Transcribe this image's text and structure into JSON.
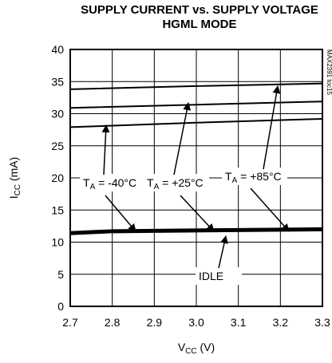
{
  "chart_data": {
    "type": "line",
    "title": "SUPPLY CURRENT vs. SUPPLY VOLTAGE",
    "subtitle": "HGML MODE",
    "xlabel": {
      "main": "V",
      "sub": "CC",
      "unit": " (V)"
    },
    "ylabel": {
      "main": "I",
      "sub": "CC",
      "unit": " (mA)"
    },
    "xlim": [
      2.7,
      3.3
    ],
    "ylim": [
      0,
      40
    ],
    "xticks": [
      "2.7",
      "2.8",
      "2.9",
      "3.0",
      "3.1",
      "3.2",
      "3.3"
    ],
    "yticks": [
      "0",
      "5",
      "10",
      "15",
      "20",
      "25",
      "30",
      "35",
      "40"
    ],
    "grid": true,
    "series": [
      {
        "name": "T_A = -40°C",
        "x": [
          2.7,
          3.0,
          3.3
        ],
        "y": [
          27.9,
          28.6,
          29.2
        ]
      },
      {
        "name": "T_A = +25°C",
        "x": [
          2.7,
          3.0,
          3.3
        ],
        "y": [
          30.9,
          31.4,
          31.9
        ]
      },
      {
        "name": "T_A = +85°C",
        "x": [
          2.7,
          3.0,
          3.3
        ],
        "y": [
          33.8,
          34.3,
          34.7
        ]
      },
      {
        "name": "IDLE",
        "x": [
          2.7,
          2.8,
          3.3
        ],
        "y": [
          11.4,
          11.7,
          12.0
        ]
      }
    ],
    "annotations": [
      {
        "label": "T_A = -40°C",
        "main": "T",
        "sub": "A",
        "rest": " = -40°C"
      },
      {
        "label": "T_A = +25°C",
        "main": "T",
        "sub": "A",
        "rest": " = +25°C"
      },
      {
        "label": "T_A = +85°C",
        "main": "T",
        "sub": "A",
        "rest": " = +85°C"
      },
      {
        "label": "IDLE",
        "main": "IDLE",
        "sub": "",
        "rest": ""
      }
    ],
    "figure_code": "MAX2391 toc15"
  }
}
